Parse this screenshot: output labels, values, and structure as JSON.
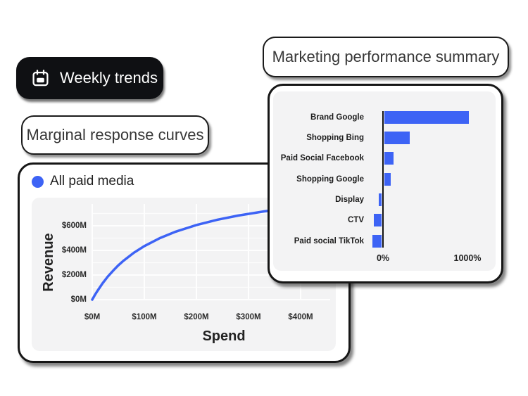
{
  "colors": {
    "accent": "#3D63F5",
    "panel_background": "#F3F3F4",
    "card_border": "#161616",
    "dark_pill_background": "#0F1013"
  },
  "weekly_trends": {
    "icon": "calendar-icon",
    "label": "Weekly trends"
  },
  "line_card": {
    "title": "Marginal response curves",
    "legend_label": "All paid media",
    "legend_dot_color": "#3D63F5"
  },
  "summary_card": {
    "title": "Marketing performance summary"
  },
  "chart_data": [
    {
      "type": "line",
      "name": "marginal-response-curve",
      "title": "Marginal response curves",
      "series_name": "All paid media",
      "xlabel": "Spend",
      "ylabel": "Revenue",
      "color": "#3D63F5",
      "x_range": [
        0,
        400
      ],
      "y_range": [
        0,
        700
      ],
      "y_grid_step": 100,
      "grid": true,
      "x_ticks": [
        {
          "v": 0,
          "label": "$0M"
        },
        {
          "v": 100,
          "label": "$100M"
        },
        {
          "v": 200,
          "label": "$200M"
        },
        {
          "v": 300,
          "label": "$300M"
        },
        {
          "v": 400,
          "label": "$400M"
        }
      ],
      "y_ticks": [
        {
          "v": 0,
          "label": "$0M"
        },
        {
          "v": 200,
          "label": "$200M"
        },
        {
          "v": 400,
          "label": "$400M"
        },
        {
          "v": 600,
          "label": "$600M"
        }
      ],
      "points": [
        [
          0,
          0
        ],
        [
          5,
          37
        ],
        [
          10,
          71
        ],
        [
          20,
          133
        ],
        [
          30,
          188
        ],
        [
          40,
          235
        ],
        [
          50,
          278
        ],
        [
          60,
          316
        ],
        [
          80,
          381
        ],
        [
          100,
          435
        ],
        [
          130,
          500
        ],
        [
          160,
          552
        ],
        [
          200,
          606
        ],
        [
          240,
          649
        ],
        [
          280,
          683
        ],
        [
          330,
          717
        ],
        [
          400,
          755
        ]
      ]
    },
    {
      "type": "bar",
      "name": "marketing-performance-summary",
      "title": "Marketing performance summary",
      "orientation": "horizontal",
      "unit": "%",
      "color": "#3D63F5",
      "categories": [
        "Brand Google",
        "Shopping Bing",
        "Paid Social Facebook",
        "Shopping Google",
        "Display",
        "CTV",
        "Paid social TikTok"
      ],
      "values": [
        1000,
        300,
        110,
        80,
        -40,
        -95,
        -115
      ],
      "x_ticks": [
        {
          "v": 0,
          "label": "0%"
        },
        {
          "v": 1000,
          "label": "1000%"
        }
      ]
    }
  ]
}
